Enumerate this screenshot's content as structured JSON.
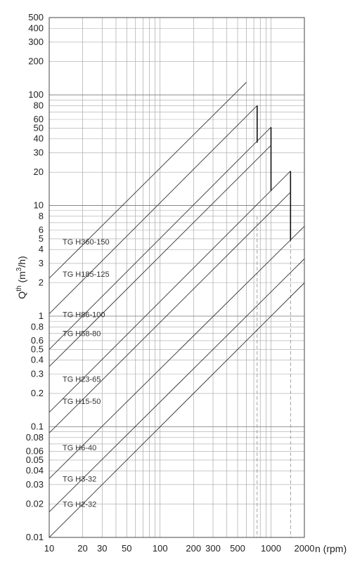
{
  "chart_data": {
    "type": "line",
    "xscale": "log",
    "yscale": "log",
    "xlim": [
      10,
      2000
    ],
    "ylim": [
      0.01,
      500
    ],
    "grid": true,
    "xlabel": "n (rpm)",
    "ylabel_main": "Q",
    "ylabel_sup": "th",
    "ylabel_unit_open": " (m",
    "ylabel_unit_sup": "3",
    "ylabel_unit_close": "/h)",
    "x_ticks": [
      {
        "value": 10,
        "label": "10"
      },
      {
        "value": 20,
        "label": "20"
      },
      {
        "value": 30,
        "label": "30"
      },
      {
        "value": 50,
        "label": "50"
      },
      {
        "value": 100,
        "label": "100"
      },
      {
        "value": 200,
        "label": "200"
      },
      {
        "value": 300,
        "label": "300"
      },
      {
        "value": 500,
        "label": "500"
      },
      {
        "value": 1000,
        "label": "1000"
      },
      {
        "value": 2000,
        "label": "2000"
      }
    ],
    "y_ticks": [
      {
        "value": 0.01,
        "label": "0.01"
      },
      {
        "value": 0.02,
        "label": "0.02"
      },
      {
        "value": 0.03,
        "label": "0.03"
      },
      {
        "value": 0.04,
        "label": "0.04"
      },
      {
        "value": 0.05,
        "label": "0.05"
      },
      {
        "value": 0.06,
        "label": "0.06"
      },
      {
        "value": 0.08,
        "label": "0.08"
      },
      {
        "value": 0.1,
        "label": "0.1"
      },
      {
        "value": 0.2,
        "label": "0.2"
      },
      {
        "value": 0.3,
        "label": "0.3"
      },
      {
        "value": 0.4,
        "label": "0.4"
      },
      {
        "value": 0.5,
        "label": "0.5"
      },
      {
        "value": 0.6,
        "label": "0.6"
      },
      {
        "value": 0.8,
        "label": "0.8"
      },
      {
        "value": 1,
        "label": "1"
      },
      {
        "value": 2,
        "label": "2"
      },
      {
        "value": 3,
        "label": "3"
      },
      {
        "value": 4,
        "label": "4"
      },
      {
        "value": 5,
        "label": "5"
      },
      {
        "value": 6,
        "label": "6"
      },
      {
        "value": 8,
        "label": "8"
      },
      {
        "value": 10,
        "label": "10"
      },
      {
        "value": 20,
        "label": "20"
      },
      {
        "value": 30,
        "label": "30"
      },
      {
        "value": 40,
        "label": "40"
      },
      {
        "value": 50,
        "label": "50"
      },
      {
        "value": 60,
        "label": "60"
      },
      {
        "value": 80,
        "label": "80"
      },
      {
        "value": 100,
        "label": "100"
      },
      {
        "value": 200,
        "label": "200"
      },
      {
        "value": 300,
        "label": "300"
      },
      {
        "value": 400,
        "label": "400"
      },
      {
        "value": 500,
        "label": "500"
      }
    ],
    "series": [
      {
        "name": "TG H360-150",
        "label_x": 13,
        "label_y": 4.7,
        "x": [
          10,
          600
        ],
        "y": [
          2.2,
          130
        ],
        "drop_to_y": null
      },
      {
        "name": "TG H185-125",
        "label_x": 13,
        "label_y": 2.4,
        "x": [
          10,
          750
        ],
        "y": [
          1.05,
          80
        ],
        "drop_to_y": 37
      },
      {
        "name": "TG H86-100",
        "label_x": 13,
        "label_y": 1.04,
        "x": [
          10,
          1000
        ],
        "y": [
          0.5,
          51
        ],
        "drop_to_y": 13.5
      },
      {
        "name": "TG H58-80",
        "label_x": 13,
        "label_y": 0.7,
        "x": [
          10,
          1000
        ],
        "y": [
          0.35,
          35
        ],
        "drop_to_y": null
      },
      {
        "name": "TG H23-65",
        "label_x": 13,
        "label_y": 0.27,
        "x": [
          10,
          1500
        ],
        "y": [
          0.135,
          20.5
        ],
        "drop_to_y": 4.8
      },
      {
        "name": "TG H15-50",
        "label_x": 13,
        "label_y": 0.17,
        "x": [
          10,
          1500
        ],
        "y": [
          0.088,
          13.2
        ],
        "drop_to_y": null
      },
      {
        "name": "TG H6-40",
        "label_x": 13,
        "label_y": 0.065,
        "x": [
          10,
          2000
        ],
        "y": [
          0.034,
          6.5
        ],
        "drop_to_y": null
      },
      {
        "name": "TG H3-32",
        "label_x": 13,
        "label_y": 0.034,
        "x": [
          10,
          2000
        ],
        "y": [
          0.017,
          3.3
        ],
        "drop_to_y": null
      },
      {
        "name": "TG H2-32",
        "label_x": 13,
        "label_y": 0.02,
        "x": [
          10,
          2000
        ],
        "y": [
          0.01,
          2.0
        ],
        "drop_to_y": null
      }
    ],
    "dashed_x": [
      750,
      1500,
      2000
    ]
  }
}
